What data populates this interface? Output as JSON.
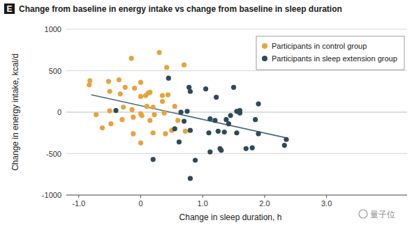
{
  "chart_data": {
    "type": "scatter",
    "title": "Change from baseline in energy intake vs change from baseline in sleep duration",
    "x_label": "Change in sleep duration, h",
    "y_label": "Change in energy intake, kcal/d",
    "annotations": [
      "E",
      "量子位"
    ],
    "xlim": [
      -1.2,
      4.3
    ],
    "xticks": [
      {
        "value": -1,
        "label": "-1.0"
      },
      0,
      {
        "value": 1,
        "label": "1.0"
      },
      {
        "value": 2,
        "label": "2.0"
      },
      {
        "value": 3,
        "label": "3.0"
      }
    ],
    "ylim": [
      -1000,
      1000
    ],
    "yticks": [
      -1000,
      -500,
      0,
      500,
      1000
    ],
    "grid": true,
    "legend": "top-right",
    "series": [
      {
        "name": "Participants in control group",
        "color": "#e8a33d",
        "marker": "circle",
        "x": [
          -0.82,
          -0.83,
          -0.72,
          -0.62,
          -0.52,
          -0.5,
          -0.5,
          -0.48,
          -0.35,
          -0.33,
          -0.3,
          -0.28,
          -0.25,
          -0.15,
          -0.14,
          -0.12,
          -0.12,
          -0.1,
          0.0,
          0.0,
          0.0,
          0.02,
          0.0,
          0.08,
          0.1,
          0.12,
          0.15,
          0.15,
          0.2,
          0.22,
          0.2,
          0.3,
          0.35,
          0.35,
          0.38,
          0.4,
          0.42,
          0.44,
          0.5,
          0.55,
          0.7,
          0.72,
          0.6
        ],
        "values": [
          380,
          330,
          -30,
          -190,
          370,
          250,
          15,
          -140,
          390,
          220,
          -90,
          60,
          300,
          650,
          30,
          -60,
          -260,
          290,
          360,
          190,
          -20,
          -40,
          -370,
          200,
          70,
          230,
          240,
          -100,
          60,
          -30,
          -250,
          720,
          200,
          130,
          -10,
          -260,
          540,
          210,
          -220,
          70,
          570,
          -230,
          -100
        ]
      },
      {
        "name": "Participants in sleep extension group",
        "color": "#2e4a57",
        "marker": "circle",
        "x": [
          -0.4,
          0.2,
          0.45,
          0.55,
          0.62,
          0.65,
          0.7,
          0.75,
          0.78,
          0.8,
          0.8,
          0.88,
          0.8,
          1.05,
          1.1,
          1.12,
          1.12,
          1.2,
          1.22,
          1.25,
          1.3,
          1.28,
          1.35,
          1.38,
          1.42,
          1.45,
          1.5,
          1.55,
          1.55,
          1.6,
          1.6,
          1.7,
          1.8,
          1.85,
          1.9,
          1.9,
          2.32,
          2.35
        ],
        "values": [
          20,
          -570,
          410,
          -200,
          -360,
          0,
          -110,
          10,
          300,
          -220,
          250,
          -580,
          -800,
          280,
          -250,
          -80,
          -480,
          -100,
          180,
          -230,
          -460,
          -440,
          -240,
          -90,
          -140,
          -40,
          300,
          10,
          -250,
          -10,
          20,
          -440,
          -430,
          -90,
          100,
          -260,
          -400,
          -330
        ]
      },
      {
        "type": "line",
        "color": "#4a6b7a",
        "line_style": "solid",
        "x": [
          -0.8,
          2.35
        ],
        "values": [
          210,
          -310
        ]
      }
    ]
  }
}
